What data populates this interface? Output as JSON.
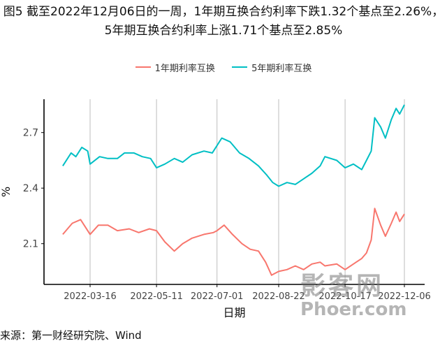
{
  "title": "图5  截至2022年12月06日的一周，1年期互换合约利率下跌1.32个基点至2.26%，5年期互换合约利率上涨1.71个基点至2.85%",
  "source": "来源：第一财经研究院、Wind",
  "watermark": {
    "cn": "影客网",
    "en": "Phoer.com"
  },
  "chart_data": {
    "type": "line",
    "xlabel": "日期",
    "ylabel": "%",
    "x_ticks": [
      "2022-03-16",
      "2022-05-11",
      "2022-07-01",
      "2022-08-22",
      "2022-10-17",
      "2022-12-06"
    ],
    "y_ticks": [
      2.1,
      2.4,
      2.7
    ],
    "ylim": [
      1.88,
      2.88
    ],
    "grid": "vertical lines at x ticks",
    "legend_position": "top",
    "series": [
      {
        "name": "1年期利率互换",
        "color": "#f8766d",
        "points": [
          [
            "2022-02-21",
            2.15
          ],
          [
            "2022-03-01",
            2.21
          ],
          [
            "2022-03-08",
            2.23
          ],
          [
            "2022-03-16",
            2.15
          ],
          [
            "2022-03-23",
            2.2
          ],
          [
            "2022-03-31",
            2.2
          ],
          [
            "2022-04-08",
            2.17
          ],
          [
            "2022-04-18",
            2.18
          ],
          [
            "2022-04-26",
            2.16
          ],
          [
            "2022-05-05",
            2.18
          ],
          [
            "2022-05-11",
            2.17
          ],
          [
            "2022-05-18",
            2.11
          ],
          [
            "2022-05-26",
            2.06
          ],
          [
            "2022-06-02",
            2.1
          ],
          [
            "2022-06-10",
            2.13
          ],
          [
            "2022-06-20",
            2.15
          ],
          [
            "2022-06-28",
            2.16
          ],
          [
            "2022-07-01",
            2.17
          ],
          [
            "2022-07-07",
            2.2
          ],
          [
            "2022-07-14",
            2.15
          ],
          [
            "2022-07-22",
            2.1
          ],
          [
            "2022-07-29",
            2.07
          ],
          [
            "2022-08-05",
            2.06
          ],
          [
            "2022-08-11",
            2.0
          ],
          [
            "2022-08-16",
            1.93
          ],
          [
            "2022-08-22",
            1.95
          ],
          [
            "2022-08-29",
            1.96
          ],
          [
            "2022-09-05",
            1.98
          ],
          [
            "2022-09-12",
            1.96
          ],
          [
            "2022-09-19",
            1.99
          ],
          [
            "2022-09-26",
            2.0
          ],
          [
            "2022-09-30",
            1.98
          ],
          [
            "2022-10-10",
            1.99
          ],
          [
            "2022-10-17",
            1.96
          ],
          [
            "2022-10-24",
            1.99
          ],
          [
            "2022-10-31",
            2.02
          ],
          [
            "2022-11-04",
            2.05
          ],
          [
            "2022-11-08",
            2.12
          ],
          [
            "2022-11-11",
            2.29
          ],
          [
            "2022-11-16",
            2.2
          ],
          [
            "2022-11-20",
            2.14
          ],
          [
            "2022-11-25",
            2.21
          ],
          [
            "2022-11-29",
            2.27
          ],
          [
            "2022-12-02",
            2.22
          ],
          [
            "2022-12-06",
            2.26
          ]
        ]
      },
      {
        "name": "5年期利率互换",
        "color": "#00bfc4",
        "points": [
          [
            "2022-02-21",
            2.52
          ],
          [
            "2022-02-28",
            2.59
          ],
          [
            "2022-03-04",
            2.57
          ],
          [
            "2022-03-09",
            2.62
          ],
          [
            "2022-03-14",
            2.6
          ],
          [
            "2022-03-16",
            2.53
          ],
          [
            "2022-03-24",
            2.57
          ],
          [
            "2022-03-31",
            2.56
          ],
          [
            "2022-04-08",
            2.56
          ],
          [
            "2022-04-14",
            2.59
          ],
          [
            "2022-04-22",
            2.59
          ],
          [
            "2022-04-29",
            2.57
          ],
          [
            "2022-05-06",
            2.56
          ],
          [
            "2022-05-11",
            2.51
          ],
          [
            "2022-05-18",
            2.53
          ],
          [
            "2022-05-26",
            2.56
          ],
          [
            "2022-06-02",
            2.54
          ],
          [
            "2022-06-10",
            2.58
          ],
          [
            "2022-06-20",
            2.6
          ],
          [
            "2022-06-27",
            2.59
          ],
          [
            "2022-07-01",
            2.63
          ],
          [
            "2022-07-05",
            2.67
          ],
          [
            "2022-07-12",
            2.65
          ],
          [
            "2022-07-20",
            2.59
          ],
          [
            "2022-07-28",
            2.56
          ],
          [
            "2022-08-05",
            2.52
          ],
          [
            "2022-08-12",
            2.47
          ],
          [
            "2022-08-17",
            2.43
          ],
          [
            "2022-08-22",
            2.41
          ],
          [
            "2022-08-29",
            2.43
          ],
          [
            "2022-09-05",
            2.42
          ],
          [
            "2022-09-12",
            2.45
          ],
          [
            "2022-09-19",
            2.48
          ],
          [
            "2022-09-26",
            2.52
          ],
          [
            "2022-09-30",
            2.57
          ],
          [
            "2022-10-10",
            2.55
          ],
          [
            "2022-10-17",
            2.51
          ],
          [
            "2022-10-24",
            2.53
          ],
          [
            "2022-10-31",
            2.5
          ],
          [
            "2022-11-04",
            2.55
          ],
          [
            "2022-11-08",
            2.6
          ],
          [
            "2022-11-11",
            2.78
          ],
          [
            "2022-11-16",
            2.73
          ],
          [
            "2022-11-20",
            2.67
          ],
          [
            "2022-11-25",
            2.77
          ],
          [
            "2022-11-29",
            2.83
          ],
          [
            "2022-12-02",
            2.8
          ],
          [
            "2022-12-06",
            2.85
          ]
        ]
      }
    ]
  }
}
